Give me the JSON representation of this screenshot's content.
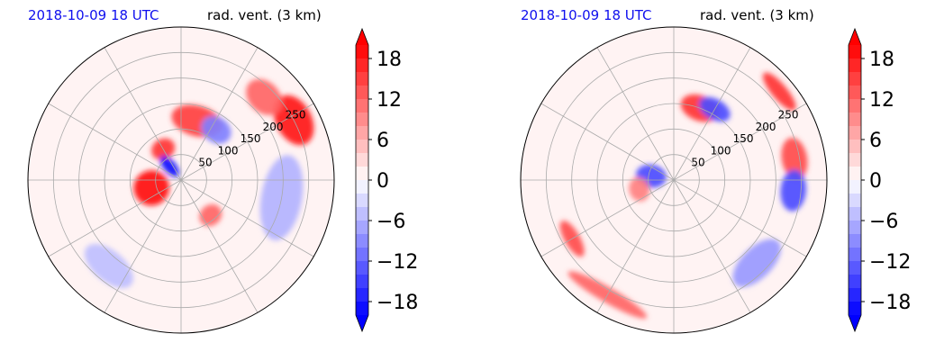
{
  "panels": [
    {
      "id": "left",
      "time_label": "2018-10-09 18 UTC",
      "variable_label": "rad. vent. (3 km)"
    },
    {
      "id": "right",
      "time_label": "2018-10-09 18 UTC",
      "variable_label": "rad. vent. (3 km)"
    }
  ],
  "colors": {
    "positive": "#ff0000",
    "negative": "#0000ff",
    "neutral": "#ffffff",
    "grid": "#aaaaaa",
    "time_label": "#1010ee"
  },
  "chart_data": [
    {
      "type": "heatmap",
      "projection": "polar",
      "title": "rad. vent. (3 km)",
      "time": "2018-10-09 18 UTC",
      "range_rings": [
        50,
        100,
        150,
        200,
        250
      ],
      "range_tick_labels": [
        "50",
        "100",
        "150",
        "200",
        "250"
      ],
      "radial_spokes_deg": [
        0,
        30,
        60,
        90,
        120,
        150,
        180,
        210,
        240,
        270,
        300,
        330
      ],
      "grid": true,
      "colorbar": {
        "vmin": -20,
        "vmax": 20,
        "levels": 20,
        "ticks": [
          18,
          12,
          6,
          0,
          -6,
          -12,
          -18
        ],
        "tick_labels": [
          "18",
          "12",
          "6",
          "0",
          "−6",
          "−12",
          "−18"
        ],
        "extend": "both",
        "colormap": "bwr"
      },
      "features": [
        {
          "sign": "positive",
          "azimuth_deg": 255,
          "range": 60,
          "spread_az": 35,
          "spread_r": 35,
          "value": 19
        },
        {
          "sign": "positive",
          "azimuth_deg": 330,
          "range": 70,
          "spread_az": 20,
          "spread_r": 20,
          "value": 16
        },
        {
          "sign": "negative",
          "azimuth_deg": 320,
          "range": 35,
          "spread_az": 20,
          "spread_r": 25,
          "value": -19
        },
        {
          "sign": "positive",
          "azimuth_deg": 15,
          "range": 120,
          "spread_az": 25,
          "spread_r": 30,
          "value": 15
        },
        {
          "sign": "negative",
          "azimuth_deg": 35,
          "range": 120,
          "spread_az": 15,
          "spread_r": 25,
          "value": -10
        },
        {
          "sign": "positive",
          "azimuth_deg": 62,
          "range": 250,
          "spread_az": 12,
          "spread_r": 35,
          "value": 18
        },
        {
          "sign": "positive",
          "azimuth_deg": 45,
          "range": 230,
          "spread_az": 10,
          "spread_r": 30,
          "value": 12
        },
        {
          "sign": "negative",
          "azimuth_deg": 100,
          "range": 200,
          "spread_az": 25,
          "spread_r": 40,
          "value": -6
        },
        {
          "sign": "positive",
          "azimuth_deg": 140,
          "range": 90,
          "spread_az": 15,
          "spread_r": 20,
          "value": 12
        },
        {
          "sign": "negative",
          "azimuth_deg": 220,
          "range": 220,
          "spread_az": 15,
          "spread_r": 30,
          "value": -5
        }
      ]
    },
    {
      "type": "heatmap",
      "projection": "polar",
      "title": "rad. vent. (3 km)",
      "time": "2018-10-09 18 UTC",
      "range_rings": [
        50,
        100,
        150,
        200,
        250
      ],
      "range_tick_labels": [
        "50",
        "100",
        "150",
        "200",
        "250"
      ],
      "radial_spokes_deg": [
        0,
        30,
        60,
        90,
        120,
        150,
        180,
        210,
        240,
        270,
        300,
        330
      ],
      "grid": true,
      "colorbar": {
        "vmin": -20,
        "vmax": 20,
        "levels": 20,
        "ticks": [
          18,
          12,
          6,
          0,
          -6,
          -12,
          -18
        ],
        "tick_labels": [
          "18",
          "12",
          "6",
          "0",
          "−6",
          "−12",
          "−18"
        ],
        "extend": "both",
        "colormap": "bwr"
      },
      "features": [
        {
          "sign": "negative",
          "azimuth_deg": 280,
          "range": 45,
          "spread_az": 30,
          "spread_r": 30,
          "value": -14
        },
        {
          "sign": "positive",
          "azimuth_deg": 255,
          "range": 70,
          "spread_az": 20,
          "spread_r": 20,
          "value": 10
        },
        {
          "sign": "positive",
          "azimuth_deg": 20,
          "range": 150,
          "spread_az": 15,
          "spread_r": 25,
          "value": 16
        },
        {
          "sign": "negative",
          "azimuth_deg": 30,
          "range": 160,
          "spread_az": 12,
          "spread_r": 20,
          "value": -14
        },
        {
          "sign": "positive",
          "azimuth_deg": 80,
          "range": 240,
          "spread_az": 10,
          "spread_r": 25,
          "value": 14
        },
        {
          "sign": "negative",
          "azimuth_deg": 95,
          "range": 235,
          "spread_az": 10,
          "spread_r": 25,
          "value": -14
        },
        {
          "sign": "positive",
          "azimuth_deg": 50,
          "range": 270,
          "spread_az": 10,
          "spread_r": 15,
          "value": 16
        },
        {
          "sign": "positive",
          "azimuth_deg": 210,
          "range": 260,
          "spread_az": 20,
          "spread_r": 15,
          "value": 12
        },
        {
          "sign": "negative",
          "azimuth_deg": 135,
          "range": 230,
          "spread_az": 15,
          "spread_r": 30,
          "value": -8
        },
        {
          "sign": "positive",
          "azimuth_deg": 240,
          "range": 230,
          "spread_az": 10,
          "spread_r": 15,
          "value": 14
        }
      ]
    }
  ]
}
